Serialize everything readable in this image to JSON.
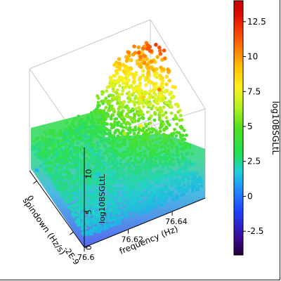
{
  "chart_data": {
    "type": "scatter",
    "dimension": "3d",
    "x_axis": {
      "label": "frequency (Hz)",
      "ticks": [
        "76.6",
        "76.62",
        "76.64"
      ],
      "tick_values": [
        76.6,
        76.62,
        76.64
      ],
      "range": [
        76.6,
        76.655
      ]
    },
    "y_axis": {
      "label": "spindown (Hz/s)",
      "ticks": [
        "0",
        "-2E-9"
      ],
      "tick_values": [
        0,
        -2e-09
      ],
      "range": [
        4e-10,
        -2.6e-09
      ]
    },
    "z_axis": {
      "label": "log10BSGLtL",
      "ticks": [
        "0",
        "5",
        "10"
      ],
      "tick_values": [
        0,
        5,
        10
      ],
      "range": [
        0,
        14
      ]
    },
    "colorbar": {
      "label": "log10BSGLtL",
      "ticks": [
        "-2.5",
        "0",
        "2.5",
        "5",
        "7.5",
        "10",
        "12.5"
      ],
      "tick_values": [
        -2.5,
        0,
        2.5,
        5,
        7.5,
        10,
        12.5
      ],
      "range": [
        -4.2,
        14
      ],
      "colormap": [
        "#2a0050",
        "#3a1aa8",
        "#2a55ff",
        "#1e9aff",
        "#20d2c8",
        "#2ee04a",
        "#5ae020",
        "#c8f020",
        "#fff020",
        "#ffb000",
        "#ff5000",
        "#e00000"
      ]
    },
    "data_points": [
      {
        "frequency": 76.6,
        "spindown": 0.0,
        "log10BSGLtL": 1.5
      },
      {
        "frequency": 76.62,
        "spindown": -1e-09,
        "log10BSGLtL": 2.0
      },
      {
        "frequency": 76.63,
        "spindown": -1.2e-09,
        "log10BSGLtL": 7.0
      },
      {
        "frequency": 76.635,
        "spindown": -1.5e-09,
        "log10BSGLtL": 8.5
      },
      {
        "frequency": 76.64,
        "spindown": -1e-09,
        "log10BSGLtL": 10.0
      },
      {
        "frequency": 76.645,
        "spindown": -1.3e-09,
        "log10BSGLtL": 11.5
      },
      {
        "frequency": 76.65,
        "spindown": -2e-09,
        "log10BSGLtL": 4.0
      }
    ],
    "grid": false
  }
}
